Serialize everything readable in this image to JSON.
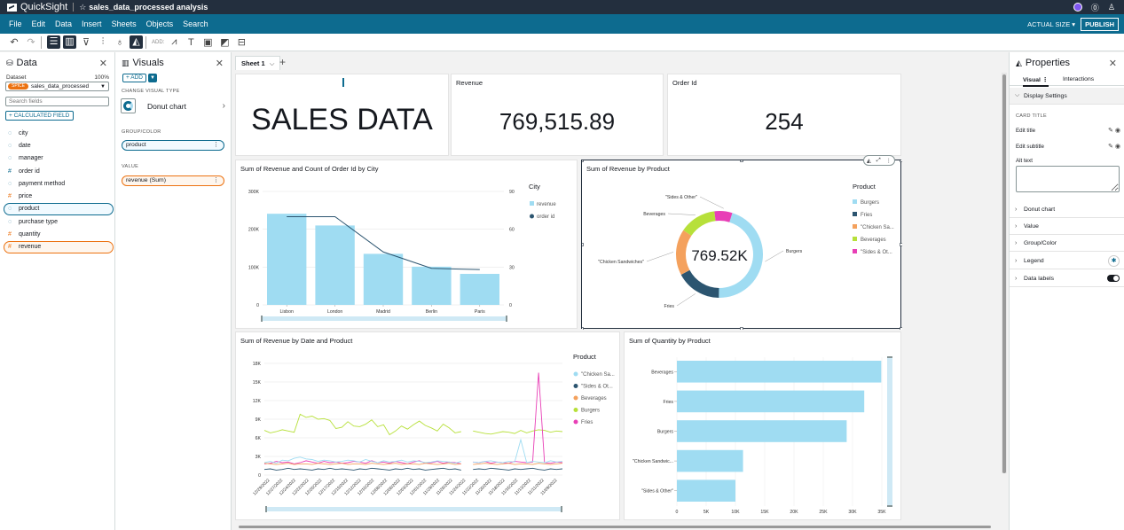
{
  "topbar": {
    "brand": "QuickSight",
    "analysis_title": "sales_data_processed analysis"
  },
  "menu": {
    "items": [
      "File",
      "Edit",
      "Data",
      "Insert",
      "Sheets",
      "Objects",
      "Search"
    ],
    "actual_size": "ACTUAL SIZE",
    "publish": "PUBLISH"
  },
  "toolbar": {
    "add_label": "ADD:"
  },
  "data_panel": {
    "title": "Data",
    "dataset_label": "Dataset",
    "dataset_pct": "100%",
    "spice": "SPICE",
    "dataset_name": "sales_data_processed",
    "search_placeholder": "Search fields",
    "calc_field": "+ CALCULATED FIELD",
    "fields": [
      {
        "name": "city",
        "type": "dim",
        "sel": ""
      },
      {
        "name": "date",
        "type": "dim",
        "sel": ""
      },
      {
        "name": "manager",
        "type": "dim",
        "sel": ""
      },
      {
        "name": "order id",
        "type": "num",
        "sel": ""
      },
      {
        "name": "payment method",
        "type": "dim",
        "sel": ""
      },
      {
        "name": "price",
        "type": "meas",
        "sel": ""
      },
      {
        "name": "product",
        "type": "dim",
        "sel": "blue"
      },
      {
        "name": "purchase type",
        "type": "dim",
        "sel": ""
      },
      {
        "name": "quantity",
        "type": "meas",
        "sel": ""
      },
      {
        "name": "revenue",
        "type": "meas",
        "sel": "orange"
      }
    ]
  },
  "visuals_panel": {
    "title": "Visuals",
    "add": "+ ADD",
    "change_type": "CHANGE VISUAL TYPE",
    "type_name": "Donut chart",
    "group_label": "GROUP/COLOR",
    "group_field": "product",
    "value_label": "VALUE",
    "value_field": "revenue (Sum)"
  },
  "sheet": {
    "tab": "Sheet 1"
  },
  "kpis": {
    "text_card": "SALES DATA",
    "revenue": {
      "title": "Revenue",
      "value": "769,515.89"
    },
    "orders": {
      "title": "Order Id",
      "value": "254"
    }
  },
  "properties": {
    "title": "Properties",
    "tab_visual": "Visual",
    "tab_interactions": "Interactions",
    "display_settings": "Display Settings",
    "card_title": "CARD TITLE",
    "edit_title": "Edit title",
    "edit_subtitle": "Edit subtitle",
    "alt_text": "Alt text",
    "sections": [
      "Donut chart",
      "Value",
      "Group/Color",
      "Legend",
      "Data labels"
    ]
  },
  "chart_data": [
    {
      "type": "bar",
      "title": "Sum of Revenue and Count of Order Id by City",
      "categories": [
        "Lisbon",
        "London",
        "Madrid",
        "Berlin",
        "Paris"
      ],
      "series": [
        {
          "name": "revenue",
          "values": [
            241000,
            210000,
            135000,
            101000,
            82000
          ],
          "color": "#9fdcf2"
        },
        {
          "name": "order id",
          "values": [
            70,
            70,
            42,
            29,
            28
          ],
          "color": "#2c5570"
        }
      ],
      "legend_title": "City",
      "y_ticks": [
        "300K",
        "200K",
        "100K",
        "0"
      ],
      "y2_ticks": [
        "90",
        "60",
        "30",
        "0"
      ],
      "ylim": [
        0,
        300000
      ],
      "y2lim": [
        0,
        90
      ],
      "legend": "right"
    },
    {
      "type": "pie",
      "title": "Sum of Revenue by Product",
      "legend_title": "Product",
      "center_label": "769.52K",
      "categories": [
        "Burgers",
        "Fries",
        "\"Chicken Sandwiches\"",
        "Beverages",
        "\"Sides & Other\""
      ],
      "legend_labels": [
        "Burgers",
        "Fries",
        "\"Chicken Sa...",
        "Beverages",
        "\"Sides & Ot..."
      ],
      "values": [
        350000,
        131000,
        132000,
        106000,
        51000
      ],
      "colors": [
        "#9fdcf2",
        "#2c5570",
        "#f4a15d",
        "#b7e03a",
        "#e83fb6"
      ],
      "legend": "right"
    },
    {
      "type": "line",
      "title": "Sum of Revenue by Date and Product",
      "legend_title": "Product",
      "legend_labels": [
        "\"Chicken Sa...",
        "\"Sides & Ot...",
        "Beverages",
        "Burgers",
        "Fries"
      ],
      "colors": [
        "#9fdcf2",
        "#2c5570",
        "#f4a15d",
        "#b7e03a",
        "#e83fb6"
      ],
      "y_ticks": [
        "18K",
        "15K",
        "12K",
        "9K",
        "6K",
        "3K",
        "0"
      ],
      "ylim": [
        0,
        18000
      ],
      "x_ticks": [
        "12/29/2022",
        "12/27/2022",
        "12/24/2022",
        "12/22/2022",
        "12/20/2022",
        "12/17/2022",
        "12/15/2022",
        "12/12/2022",
        "12/10/2022",
        "12/08/2022",
        "12/06/2022",
        "12/03/2022",
        "12/01/2022",
        "11/29/2022",
        "11/26/2022",
        "11/24/2022",
        "11/22/2022",
        "11/20/2022",
        "11/18/2022",
        "11/16/2022",
        "11/13/2022",
        "11/11/2022",
        "11/09/2022"
      ],
      "series": [
        {
          "name": "Burgers",
          "values": [
            7200,
            6800,
            7000,
            7300,
            7100,
            6900,
            9800,
            9300,
            9500,
            9000,
            9100,
            8800,
            7500,
            7700,
            8600,
            7900,
            7800,
            8200,
            8900,
            7800,
            8100,
            6500,
            7100,
            7900,
            7400,
            8100,
            8700,
            8000,
            7600,
            7100,
            8200,
            7600,
            6800,
            7000,
            null,
            7100,
            6900,
            6700,
            6600,
            6800,
            7000,
            6900,
            6700,
            7200,
            6800,
            7100,
            7300,
            7200,
            6900,
            7100,
            7000
          ]
        },
        {
          "name": "Fries",
          "values": [
            1800,
            1900,
            2200,
            2000,
            2100,
            1800,
            2000,
            2300,
            2100,
            1900,
            2200,
            2000,
            2100,
            1900,
            2000,
            2200,
            2100,
            1900,
            2300,
            2000,
            2100,
            1900,
            2200,
            2000,
            1800,
            2100,
            2300,
            1900,
            2000,
            2200,
            1900,
            2100,
            2000,
            1800,
            null,
            2100,
            2000,
            2200,
            1900,
            2100,
            2000,
            1900,
            2200,
            2100,
            2000,
            2100,
            16500,
            2000,
            1900,
            2100,
            2000
          ]
        },
        {
          "name": "\"Chicken Sandwiches\"",
          "values": [
            2000,
            2200,
            1900,
            2400,
            2300,
            2700,
            2900,
            2600,
            2500,
            2200,
            2400,
            2300,
            2100,
            2200,
            2400,
            2300,
            2100,
            2500,
            2200,
            2000,
            2300,
            2100,
            2200,
            2400,
            2100,
            2300,
            2200,
            2000,
            2100,
            2300,
            2200,
            2100,
            1900,
            2200,
            null,
            2100,
            2000,
            2200,
            2300,
            2100,
            2000,
            2200,
            2100,
            5700,
            2000,
            2200,
            2100,
            2000,
            2300,
            2100,
            2200
          ]
        },
        {
          "name": "\"Sides & Other\"",
          "values": [
            900,
            1000,
            800,
            900,
            1100,
            900,
            1000,
            900,
            800,
            1000,
            900,
            1100,
            900,
            1000,
            900,
            800,
            1000,
            900,
            1100,
            1000,
            900,
            800,
            1000,
            900,
            1100,
            900,
            1000,
            800,
            900,
            1000,
            1100,
            900,
            1000,
            800,
            null,
            900,
            1000,
            900,
            1100,
            1000,
            900,
            800,
            1000,
            900,
            1000,
            1100,
            900,
            800,
            1000,
            900,
            1000
          ]
        },
        {
          "name": "Beverages",
          "values": [
            1900,
            1800,
            1700,
            1800,
            1900,
            1700,
            1800,
            1800,
            1700,
            1900,
            1800,
            1700,
            1800,
            1900,
            1700,
            1800,
            1800,
            1700,
            1900,
            1800,
            1700,
            1800,
            1900,
            1700,
            1800,
            1800,
            1700,
            1900,
            1800,
            1700,
            1800,
            1900,
            1700,
            1800,
            null,
            1700,
            1800,
            1900,
            1800,
            1700,
            1800,
            1900,
            1700,
            1800,
            1800,
            1700,
            1900,
            1800,
            1700,
            1800,
            1900
          ]
        }
      ],
      "legend": "right"
    },
    {
      "type": "bar",
      "orientation": "horizontal",
      "title": "Sum of Quantity by Product",
      "categories": [
        "Beverages",
        "Fries",
        "Burgers",
        "\"Chicken Sandwic...",
        "\"Sides & Other\""
      ],
      "values": [
        34900,
        32000,
        29000,
        11300,
        10000
      ],
      "x_ticks": [
        "0",
        "5K",
        "10K",
        "15K",
        "20K",
        "25K",
        "30K",
        "35K"
      ],
      "xlim": [
        0,
        35000
      ],
      "color": "#9fdcf2"
    }
  ]
}
